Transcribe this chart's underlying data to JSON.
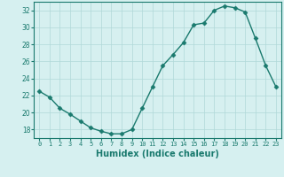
{
  "x": [
    0,
    1,
    2,
    3,
    4,
    5,
    6,
    7,
    8,
    9,
    10,
    11,
    12,
    13,
    14,
    15,
    16,
    17,
    18,
    19,
    20,
    21,
    22,
    23
  ],
  "y": [
    22.5,
    21.8,
    20.5,
    19.8,
    19.0,
    18.2,
    17.8,
    17.5,
    17.5,
    18.0,
    20.5,
    23.0,
    25.5,
    26.8,
    28.2,
    30.3,
    30.5,
    32.0,
    32.5,
    32.3,
    31.8,
    28.7,
    25.5,
    23.0
  ],
  "xlabel": "Humidex (Indice chaleur)",
  "ylim": [
    17,
    33
  ],
  "xlim": [
    -0.5,
    23.5
  ],
  "yticks": [
    18,
    20,
    22,
    24,
    26,
    28,
    30,
    32
  ],
  "xticks": [
    0,
    1,
    2,
    3,
    4,
    5,
    6,
    7,
    8,
    9,
    10,
    11,
    12,
    13,
    14,
    15,
    16,
    17,
    18,
    19,
    20,
    21,
    22,
    23
  ],
  "line_color": "#1a7a6e",
  "marker": "D",
  "marker_size": 2.5,
  "bg_color": "#d6f0f0",
  "grid_color": "#b0d8d8",
  "tick_color": "#1a7a6e",
  "label_fontsize": 6,
  "xlabel_fontsize": 7
}
